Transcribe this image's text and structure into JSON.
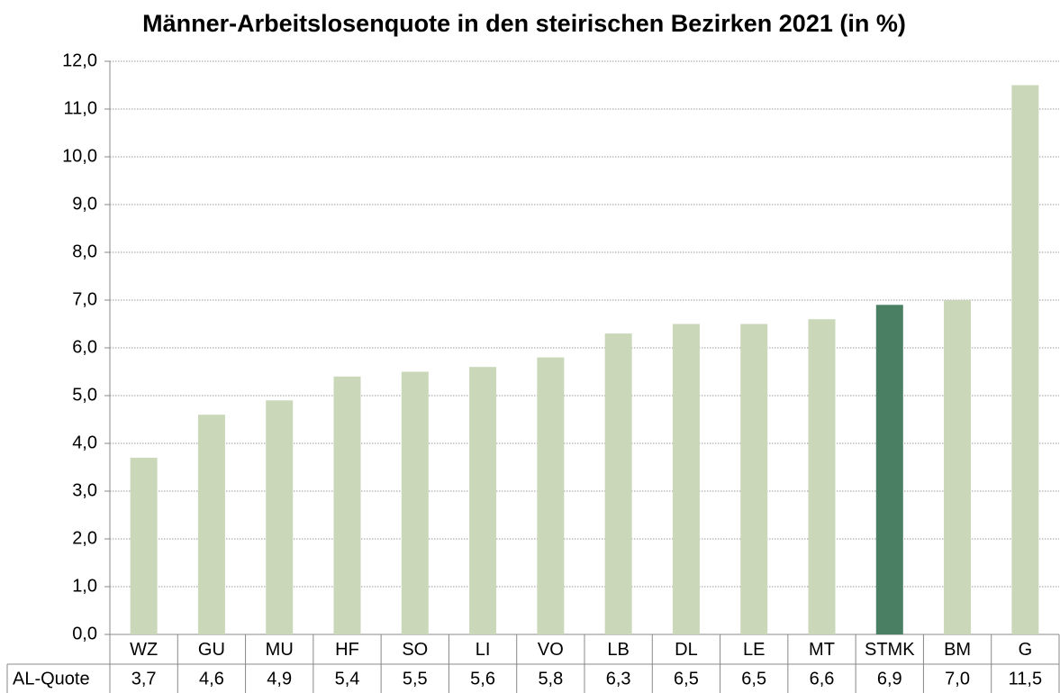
{
  "chart_data": {
    "type": "bar",
    "title": "Männer-Arbeitslosenquote in den steirischen Bezirken 2021 (in %)",
    "categories": [
      "WZ",
      "GU",
      "MU",
      "HF",
      "SO",
      "LI",
      "VO",
      "LB",
      "DL",
      "LE",
      "MT",
      "STMK",
      "BM",
      "G"
    ],
    "series": [
      {
        "name": "AL-Quote",
        "colors": [
          "#cad7b9",
          "#cad7b9",
          "#cad7b9",
          "#cad7b9",
          "#cad7b9",
          "#cad7b9",
          "#cad7b9",
          "#cad7b9",
          "#cad7b9",
          "#cad7b9",
          "#cad7b9",
          "#4a7f63",
          "#cad7b9",
          "#cad7b9"
        ],
        "values": [
          3.7,
          4.6,
          4.9,
          5.4,
          5.5,
          5.6,
          5.8,
          6.3,
          6.5,
          6.5,
          6.6,
          6.9,
          7.0,
          11.5
        ],
        "value_labels": [
          "3,7",
          "4,6",
          "4,9",
          "5,4",
          "5,5",
          "5,6",
          "5,8",
          "6,3",
          "6,5",
          "6,5",
          "6,6",
          "6,9",
          "7,0",
          "11,5"
        ]
      }
    ],
    "ylim": [
      0,
      12
    ],
    "yticks": [
      {
        "value": 0,
        "label": "0,0"
      },
      {
        "value": 1,
        "label": "1,0"
      },
      {
        "value": 2,
        "label": "2,0"
      },
      {
        "value": 3,
        "label": "3,0"
      },
      {
        "value": 4,
        "label": "4,0"
      },
      {
        "value": 5,
        "label": "5,0"
      },
      {
        "value": 6,
        "label": "6,0"
      },
      {
        "value": 7,
        "label": "7,0"
      },
      {
        "value": 8,
        "label": "8,0"
      },
      {
        "value": 9,
        "label": "9,0"
      },
      {
        "value": 10,
        "label": "10,0"
      },
      {
        "value": 11,
        "label": "11,0"
      },
      {
        "value": 12,
        "label": "12,0"
      }
    ],
    "grid": true
  }
}
